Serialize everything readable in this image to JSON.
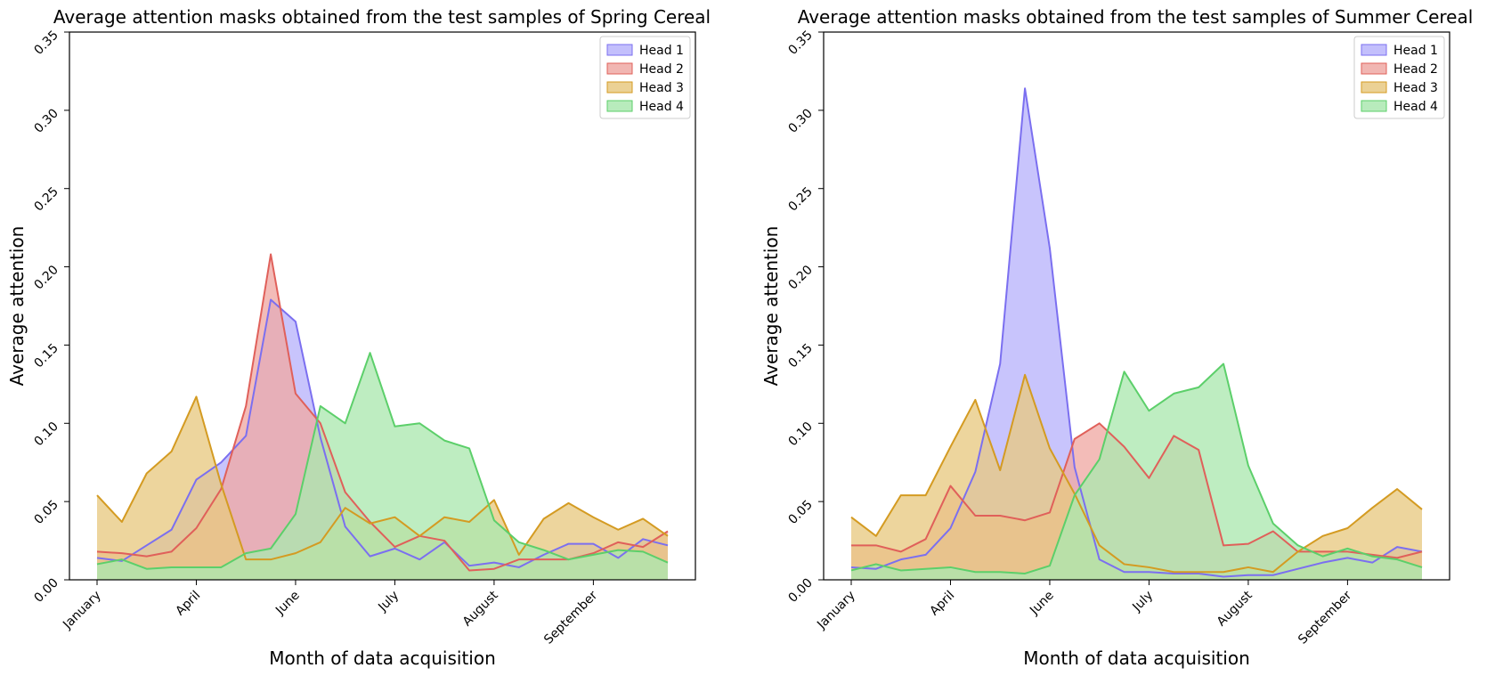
{
  "chart_data": [
    {
      "type": "area",
      "title": "Average attention masks obtained from the test samples of Spring Cereal",
      "xlabel": "Month of data acquisition",
      "ylabel": "Average attention",
      "ylim": [
        0,
        0.35
      ],
      "yticks": [
        "0.00",
        "0.05",
        "0.10",
        "0.15",
        "0.20",
        "0.25",
        "0.30",
        "0.35"
      ],
      "xticks": [
        {
          "label": "January",
          "index": 0
        },
        {
          "label": "April",
          "index": 4
        },
        {
          "label": "June",
          "index": 8
        },
        {
          "label": "July",
          "index": 12
        },
        {
          "label": "August",
          "index": 16
        },
        {
          "label": "September",
          "index": 20
        }
      ],
      "x_count": 24,
      "legend_position": "top-right",
      "grid": false,
      "series": [
        {
          "name": "Head 1",
          "color": "#7b6ff0",
          "fill": "#b9b4fb",
          "values": [
            0.014,
            0.012,
            0.022,
            0.032,
            0.064,
            0.075,
            0.092,
            0.179,
            0.165,
            0.091,
            0.034,
            0.015,
            0.02,
            0.013,
            0.024,
            0.009,
            0.011,
            0.008,
            0.016,
            0.023,
            0.023,
            0.014,
            0.026,
            0.022
          ]
        },
        {
          "name": "Head 2",
          "color": "#e0605a",
          "fill": "#efa9a4",
          "values": [
            0.018,
            0.017,
            0.015,
            0.018,
            0.033,
            0.058,
            0.111,
            0.208,
            0.119,
            0.1,
            0.056,
            0.037,
            0.021,
            0.028,
            0.025,
            0.006,
            0.007,
            0.013,
            0.013,
            0.013,
            0.017,
            0.024,
            0.021,
            0.031
          ]
        },
        {
          "name": "Head 3",
          "color": "#d49b22",
          "fill": "#e8c982",
          "values": [
            0.054,
            0.037,
            0.068,
            0.082,
            0.117,
            0.061,
            0.013,
            0.013,
            0.017,
            0.024,
            0.046,
            0.036,
            0.04,
            0.028,
            0.04,
            0.037,
            0.051,
            0.016,
            0.039,
            0.049,
            0.04,
            0.032,
            0.039,
            0.028
          ]
        },
        {
          "name": "Head 4",
          "color": "#5ccf6a",
          "fill": "#ace8b0",
          "values": [
            0.01,
            0.013,
            0.007,
            0.008,
            0.008,
            0.008,
            0.017,
            0.02,
            0.042,
            0.111,
            0.1,
            0.145,
            0.098,
            0.1,
            0.089,
            0.084,
            0.038,
            0.024,
            0.019,
            0.013,
            0.016,
            0.019,
            0.018,
            0.011
          ]
        }
      ]
    },
    {
      "type": "area",
      "title": "Average attention masks obtained from the test samples of Summer Cereal",
      "xlabel": "Month of data acquisition",
      "ylabel": "Average attention",
      "ylim": [
        0,
        0.35
      ],
      "yticks": [
        "0.00",
        "0.05",
        "0.10",
        "0.15",
        "0.20",
        "0.25",
        "0.30",
        "0.35"
      ],
      "xticks": [
        {
          "label": "January",
          "index": 0
        },
        {
          "label": "April",
          "index": 4
        },
        {
          "label": "June",
          "index": 8
        },
        {
          "label": "July",
          "index": 12
        },
        {
          "label": "August",
          "index": 16
        },
        {
          "label": "September",
          "index": 20
        }
      ],
      "x_count": 24,
      "legend_position": "top-right",
      "grid": false,
      "series": [
        {
          "name": "Head 1",
          "color": "#7b6ff0",
          "fill": "#b9b4fb",
          "values": [
            0.008,
            0.007,
            0.013,
            0.016,
            0.033,
            0.069,
            0.138,
            0.314,
            0.212,
            0.072,
            0.013,
            0.005,
            0.005,
            0.004,
            0.004,
            0.002,
            0.003,
            0.003,
            0.007,
            0.011,
            0.014,
            0.011,
            0.021,
            0.018
          ]
        },
        {
          "name": "Head 2",
          "color": "#e0605a",
          "fill": "#efa9a4",
          "values": [
            0.022,
            0.022,
            0.018,
            0.026,
            0.06,
            0.041,
            0.041,
            0.038,
            0.043,
            0.09,
            0.1,
            0.085,
            0.065,
            0.092,
            0.083,
            0.022,
            0.023,
            0.031,
            0.018,
            0.018,
            0.018,
            0.016,
            0.014,
            0.018
          ]
        },
        {
          "name": "Head 3",
          "color": "#d49b22",
          "fill": "#e8c982",
          "values": [
            0.04,
            0.028,
            0.054,
            0.054,
            0.085,
            0.115,
            0.07,
            0.131,
            0.084,
            0.055,
            0.022,
            0.01,
            0.008,
            0.005,
            0.005,
            0.005,
            0.008,
            0.005,
            0.018,
            0.028,
            0.033,
            0.046,
            0.058,
            0.045
          ]
        },
        {
          "name": "Head 4",
          "color": "#5ccf6a",
          "fill": "#ace8b0",
          "values": [
            0.006,
            0.01,
            0.006,
            0.007,
            0.008,
            0.005,
            0.005,
            0.004,
            0.009,
            0.054,
            0.077,
            0.133,
            0.108,
            0.119,
            0.123,
            0.138,
            0.073,
            0.036,
            0.022,
            0.015,
            0.02,
            0.015,
            0.013,
            0.008
          ]
        }
      ]
    }
  ]
}
